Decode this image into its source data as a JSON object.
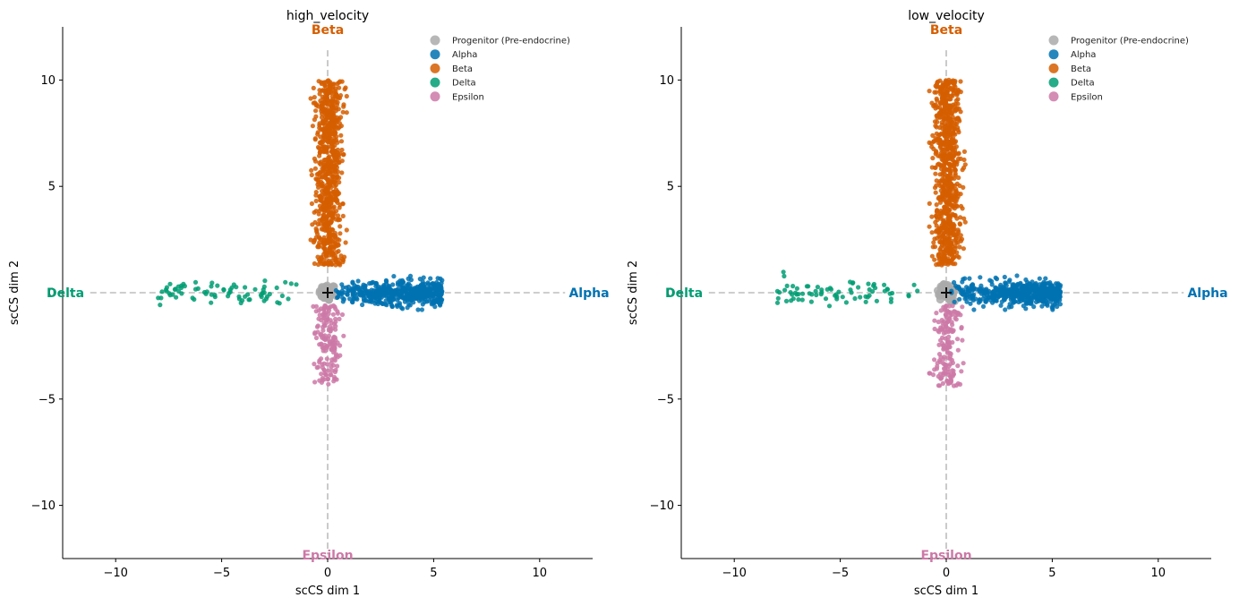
{
  "chart_data": [
    {
      "type": "scatter",
      "title": "high_velocity",
      "xlabel": "scCS dim 1",
      "ylabel": "scCS dim 2",
      "xlim": [
        -12.5,
        12.5
      ],
      "ylim": [
        -12.5,
        12.5
      ],
      "x_ticks": [
        -10,
        -5,
        0,
        5,
        10
      ],
      "y_ticks": [
        -10,
        -5,
        0,
        5,
        10
      ],
      "tick_labels_x": [
        "−10",
        "−5",
        "0",
        "5",
        "10"
      ],
      "tick_labels_y": [
        "−10",
        "−5",
        "0",
        "5",
        "10"
      ],
      "grid": false,
      "legend_position": "top-right",
      "center_marker": [
        0,
        0
      ],
      "axis_end_labels": [
        {
          "text": "Beta",
          "x": 0,
          "y": 12.5,
          "color": "#d55e00"
        },
        {
          "text": "Epsilon",
          "x": 0,
          "y": -12.5,
          "color": "#cc79a7"
        },
        {
          "text": "Delta",
          "x": -12.5,
          "y": 0,
          "color": "#009e73"
        },
        {
          "text": "Alpha",
          "x": 12.5,
          "y": 0,
          "color": "#0072b2"
        }
      ],
      "series": [
        {
          "name": "Progenitor (Pre-endocrine)",
          "color": "#aaaaaa",
          "region": {
            "x": [
              -0.4,
              0.4
            ],
            "y": [
              -0.4,
              0.4
            ]
          },
          "count": 60
        },
        {
          "name": "Alpha",
          "color": "#0072b2",
          "region": {
            "x": [
              0.2,
              5.4
            ],
            "y": [
              -0.8,
              0.8
            ]
          },
          "count": 520
        },
        {
          "name": "Beta",
          "color": "#d55e00",
          "region": {
            "x": [
              -0.8,
              0.9
            ],
            "y": [
              1.3,
              10
            ]
          },
          "count": 760
        },
        {
          "name": "Delta",
          "color": "#009e73",
          "region": {
            "x": [
              -8,
              -1.3
            ],
            "y": [
              -0.7,
              1.0
            ]
          },
          "count": 75
        },
        {
          "name": "Epsilon",
          "color": "#cc79a7",
          "region": {
            "x": [
              -0.8,
              0.9
            ],
            "y": [
              -4.4,
              -0.6
            ]
          },
          "count": 160
        }
      ]
    },
    {
      "type": "scatter",
      "title": "low_velocity",
      "xlabel": "scCS dim 1",
      "ylabel": "scCS dim 2",
      "xlim": [
        -12.5,
        12.5
      ],
      "ylim": [
        -12.5,
        12.5
      ],
      "x_ticks": [
        -10,
        -5,
        0,
        5,
        10
      ],
      "y_ticks": [
        -10,
        -5,
        0,
        5,
        10
      ],
      "tick_labels_x": [
        "−10",
        "−5",
        "0",
        "5",
        "10"
      ],
      "tick_labels_y": [
        "−10",
        "−5",
        "0",
        "5",
        "10"
      ],
      "grid": false,
      "legend_position": "top-right",
      "center_marker": [
        0,
        0
      ],
      "axis_end_labels": [
        {
          "text": "Beta",
          "x": 0,
          "y": 12.5,
          "color": "#d55e00"
        },
        {
          "text": "Epsilon",
          "x": 0,
          "y": -12.5,
          "color": "#cc79a7"
        },
        {
          "text": "Delta",
          "x": -12.5,
          "y": 0,
          "color": "#009e73"
        },
        {
          "text": "Alpha",
          "x": 12.5,
          "y": 0,
          "color": "#0072b2"
        }
      ],
      "series": [
        {
          "name": "Progenitor (Pre-endocrine)",
          "color": "#aaaaaa",
          "region": {
            "x": [
              -0.4,
              0.4
            ],
            "y": [
              -0.4,
              0.4
            ]
          },
          "count": 60
        },
        {
          "name": "Alpha",
          "color": "#0072b2",
          "region": {
            "x": [
              0.2,
              5.4
            ],
            "y": [
              -0.8,
              0.8
            ]
          },
          "count": 520
        },
        {
          "name": "Beta",
          "color": "#d55e00",
          "region": {
            "x": [
              -0.8,
              0.9
            ],
            "y": [
              1.3,
              10
            ]
          },
          "count": 760
        },
        {
          "name": "Delta",
          "color": "#009e73",
          "region": {
            "x": [
              -8,
              -1.3
            ],
            "y": [
              -0.7,
              1.0
            ]
          },
          "count": 75
        },
        {
          "name": "Epsilon",
          "color": "#cc79a7",
          "region": {
            "x": [
              -0.8,
              0.9
            ],
            "y": [
              -4.4,
              -0.6
            ]
          },
          "count": 160
        }
      ]
    }
  ]
}
